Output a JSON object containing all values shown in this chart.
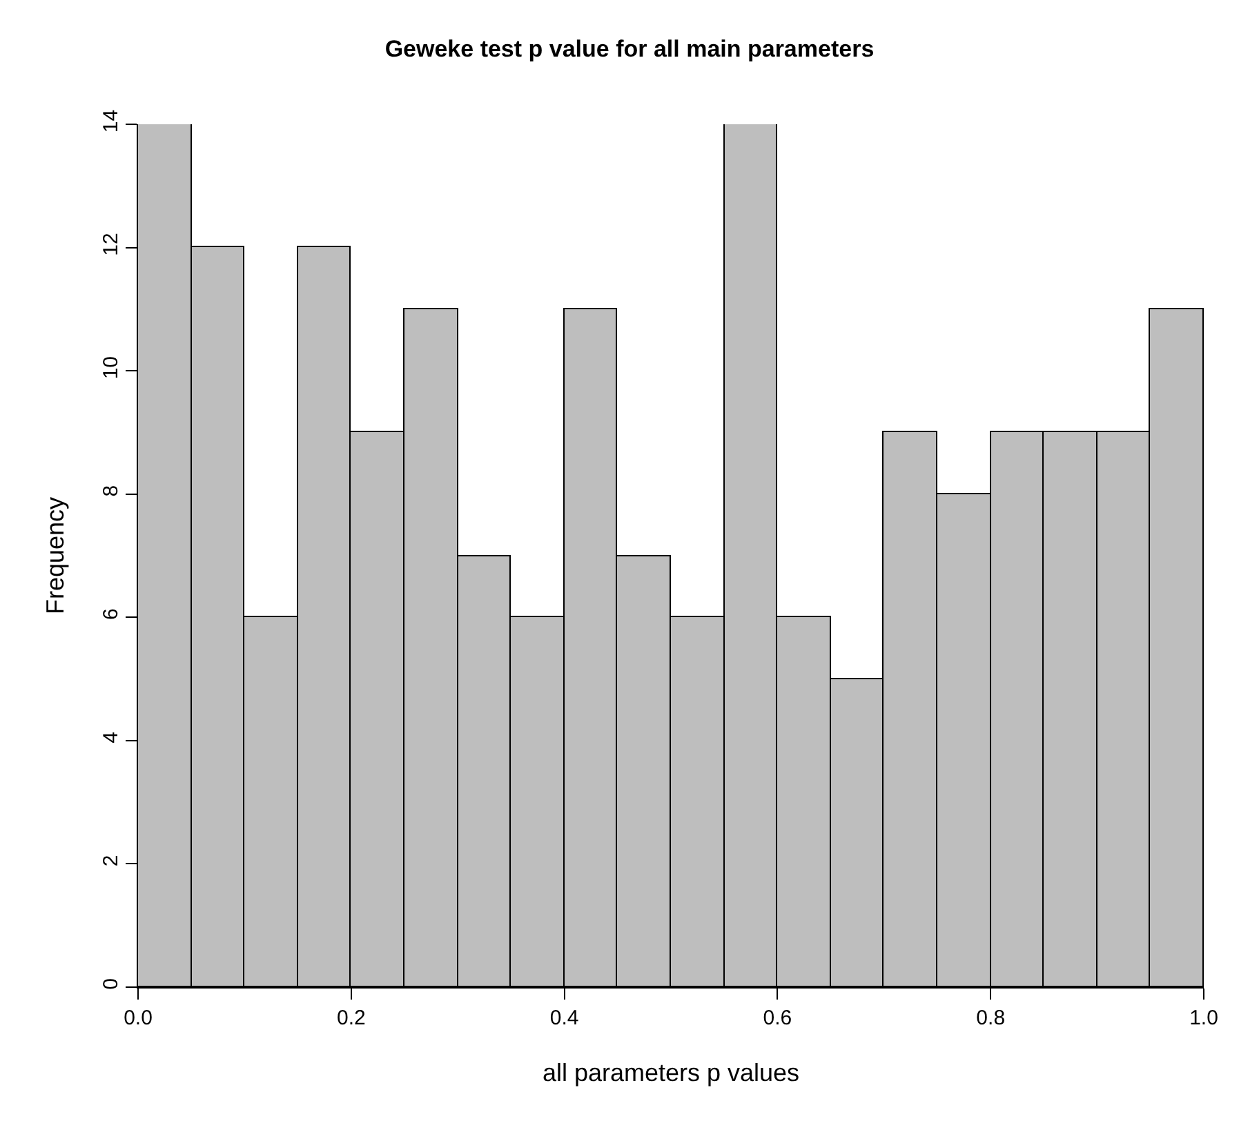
{
  "chart_data": {
    "type": "histogram",
    "title": "Geweke test p value for all main parameters",
    "xlabel": "all parameters p values",
    "ylabel": "Frequency",
    "bins": [
      0,
      0.05,
      0.1,
      0.15,
      0.2,
      0.25,
      0.3,
      0.35,
      0.4,
      0.45,
      0.5,
      0.55,
      0.6,
      0.65,
      0.7,
      0.75,
      0.8,
      0.85,
      0.9,
      0.95,
      1.0
    ],
    "values": [
      14,
      12,
      6,
      12,
      9,
      11,
      7,
      6,
      11,
      7,
      6,
      14,
      6,
      5,
      9,
      8,
      9,
      9,
      9,
      11
    ],
    "color": "#bebebe",
    "xlim": [
      0,
      1
    ],
    "xticks": [
      {
        "value": 0,
        "label": "0.0"
      },
      0.2,
      0.4,
      0.6,
      0.8,
      {
        "value": 1,
        "label": "1.0"
      }
    ],
    "ylim": [
      0,
      14
    ],
    "yticks": [
      0,
      2,
      4,
      6,
      8,
      10,
      12,
      14
    ]
  }
}
